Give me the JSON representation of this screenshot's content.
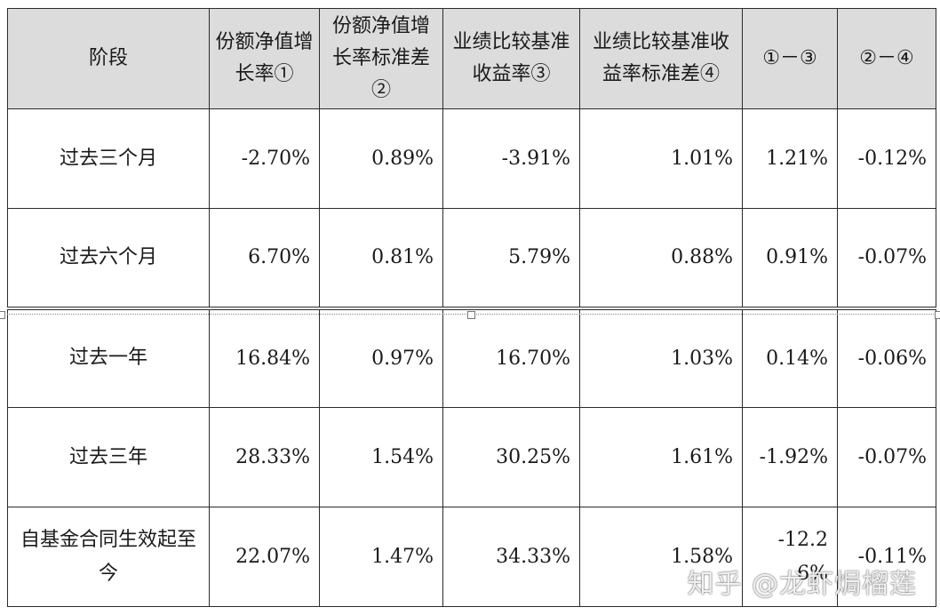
{
  "table": {
    "headers": [
      "阶段",
      "份额净值增长率①",
      "份额净值增长率标准差②",
      "业绩比较基准收益率③",
      "业绩比较基准收益率标准差④",
      "①－③",
      "②－④"
    ],
    "rows": [
      [
        "过去三个月",
        "-2.70%",
        "0.89%",
        "-3.91%",
        "1.01%",
        "1.21%",
        "-0.12%"
      ],
      [
        "过去六个月",
        "6.70%",
        "0.81%",
        "5.79%",
        "0.88%",
        "0.91%",
        "-0.07%"
      ],
      [
        "过去一年",
        "16.84%",
        "0.97%",
        "16.70%",
        "1.03%",
        "0.14%",
        "-0.06%"
      ],
      [
        "过去三年",
        "28.33%",
        "1.54%",
        "30.25%",
        "1.61%",
        "-1.92%",
        "-0.07%"
      ],
      [
        "自基金合同生效起至今",
        "22.07%",
        "1.47%",
        "34.33%",
        "1.58%",
        "-12.26%",
        "-0.11%"
      ]
    ]
  },
  "watermark": "知乎 @龙虾焗榴莲"
}
